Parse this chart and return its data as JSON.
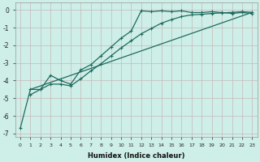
{
  "xlabel": "Humidex (Indice chaleur)",
  "xlim": [
    -0.5,
    23.5
  ],
  "ylim": [
    -7.2,
    0.4
  ],
  "bg_color": "#ceeee8",
  "grid_color": "#b8ddd8",
  "line_color": "#1e6b5e",
  "x_ticks": [
    0,
    1,
    2,
    3,
    4,
    5,
    6,
    7,
    8,
    9,
    10,
    11,
    12,
    13,
    14,
    15,
    16,
    17,
    18,
    19,
    20,
    21,
    22,
    23
  ],
  "y_ticks": [
    0,
    -1,
    -2,
    -3,
    -4,
    -5,
    -6,
    -7
  ],
  "line1_x": [
    0,
    1,
    2,
    3,
    4,
    5,
    6,
    7,
    8,
    9,
    10,
    11,
    12,
    13,
    14,
    15,
    16,
    17,
    18,
    19,
    20,
    21,
    22,
    23
  ],
  "line1_y": [
    -6.7,
    -4.5,
    -4.5,
    -3.7,
    -4.0,
    -4.2,
    -3.4,
    -3.1,
    -2.6,
    -2.1,
    -1.6,
    -1.2,
    -0.05,
    -0.1,
    -0.05,
    -0.1,
    -0.05,
    -0.15,
    -0.15,
    -0.1,
    -0.15,
    -0.2,
    -0.15,
    -0.2
  ],
  "line2_x": [
    1,
    2,
    3,
    4,
    5,
    6,
    7,
    8,
    9,
    10,
    11,
    12,
    13,
    14,
    15,
    16,
    17,
    18,
    19,
    20,
    21,
    22,
    23
  ],
  "line2_y": [
    -4.8,
    -4.5,
    -4.2,
    -4.2,
    -4.3,
    -3.9,
    -3.45,
    -3.05,
    -2.6,
    -2.15,
    -1.75,
    -1.35,
    -1.05,
    -0.75,
    -0.55,
    -0.38,
    -0.28,
    -0.25,
    -0.2,
    -0.17,
    -0.14,
    -0.1,
    -0.14
  ],
  "line3_x": [
    1,
    23
  ],
  "line3_y": [
    -4.5,
    -0.14
  ]
}
